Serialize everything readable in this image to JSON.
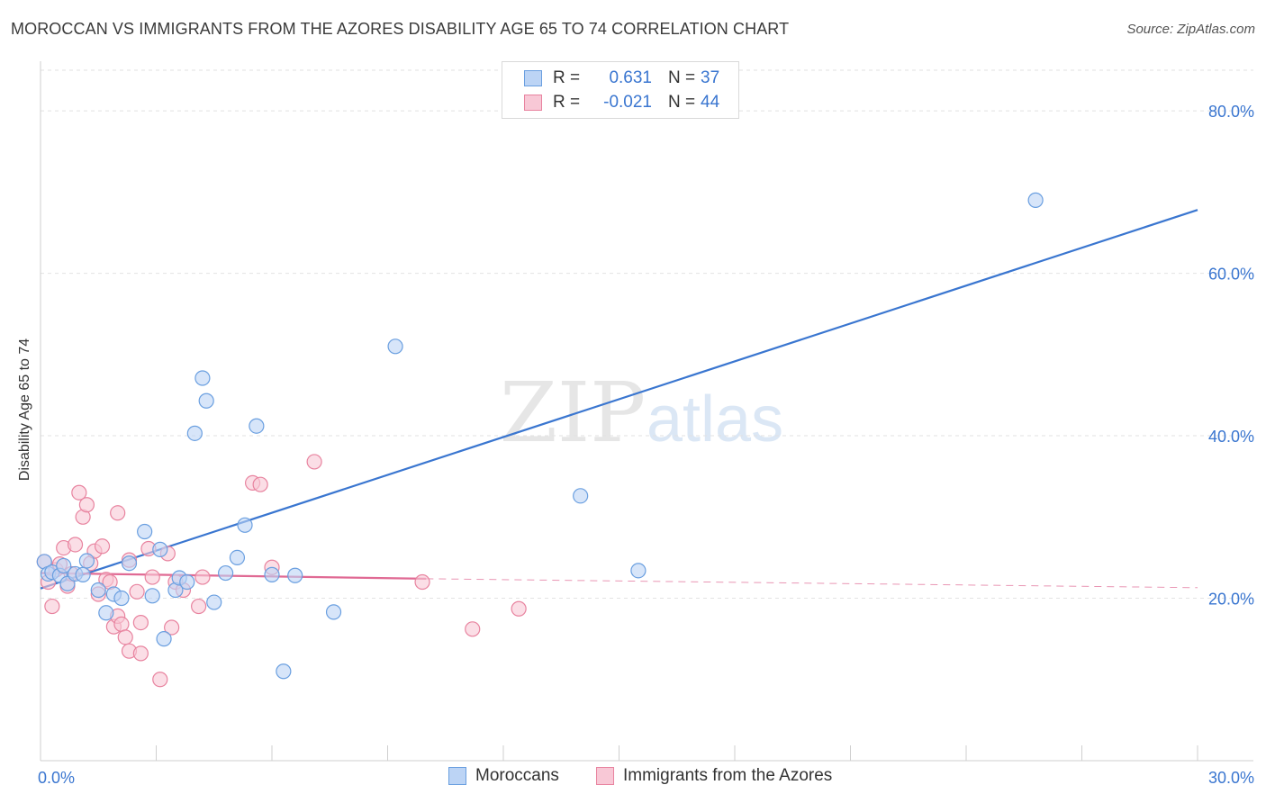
{
  "header": {
    "title": "MOROCCAN VS IMMIGRANTS FROM THE AZORES DISABILITY AGE 65 TO 74 CORRELATION CHART",
    "source": "Source: ZipAtlas.com"
  },
  "watermark": {
    "zip": "ZIP",
    "atlas": "atlas"
  },
  "legend_top": {
    "rows": [
      {
        "r_label": "R =",
        "r_value": "0.631",
        "n_label": "N =",
        "n_value": "37",
        "color": "#6a9fe0",
        "fill": "#bcd4f5"
      },
      {
        "r_label": "R =",
        "r_value": "-0.021",
        "n_label": "N =",
        "n_value": "44",
        "color": "#e8839f",
        "fill": "#f8c8d6"
      }
    ]
  },
  "legend_bottom": [
    {
      "label": "Moroccans",
      "color": "#6a9fe0",
      "fill": "#bcd4f5"
    },
    {
      "label": "Immigrants from the Azores",
      "color": "#e8839f",
      "fill": "#f8c8d6"
    }
  ],
  "chart_data": {
    "type": "scatter",
    "title": "MOROCCAN VS IMMIGRANTS FROM THE AZORES DISABILITY AGE 65 TO 74 CORRELATION CHART",
    "xlabel": "",
    "ylabel": "Disability Age 65 to 74",
    "xlim": [
      0,
      30
    ],
    "ylim": [
      0,
      85
    ],
    "x_tick_labels": [
      {
        "value": 0,
        "label": "0.0%"
      },
      {
        "value": 30,
        "label": "30.0%"
      }
    ],
    "y_tick_labels": [
      {
        "value": 20,
        "label": "20.0%"
      },
      {
        "value": 40,
        "label": "40.0%"
      },
      {
        "value": 60,
        "label": "60.0%"
      },
      {
        "value": 80,
        "label": "80.0%"
      }
    ],
    "grid": true,
    "series": [
      {
        "name": "Moroccans",
        "color": "#3a76d0",
        "point_stroke": "#6a9fe0",
        "point_fill": "#bcd4f5",
        "trend": {
          "x": [
            0,
            30
          ],
          "y": [
            21.2,
            67.8
          ],
          "dashed_after": null
        },
        "points": [
          {
            "x": 0.1,
            "y": 24.5
          },
          {
            "x": 0.2,
            "y": 23.0
          },
          {
            "x": 0.3,
            "y": 23.2
          },
          {
            "x": 0.5,
            "y": 22.8
          },
          {
            "x": 0.7,
            "y": 21.8
          },
          {
            "x": 0.9,
            "y": 23.0
          },
          {
            "x": 1.2,
            "y": 24.6
          },
          {
            "x": 1.1,
            "y": 22.9
          },
          {
            "x": 1.5,
            "y": 21.0
          },
          {
            "x": 1.7,
            "y": 18.2
          },
          {
            "x": 1.9,
            "y": 20.5
          },
          {
            "x": 2.1,
            "y": 20.0
          },
          {
            "x": 2.3,
            "y": 24.3
          },
          {
            "x": 2.7,
            "y": 28.2
          },
          {
            "x": 2.9,
            "y": 20.3
          },
          {
            "x": 3.1,
            "y": 26.0
          },
          {
            "x": 3.2,
            "y": 15.0
          },
          {
            "x": 3.5,
            "y": 21.0
          },
          {
            "x": 3.6,
            "y": 22.5
          },
          {
            "x": 3.8,
            "y": 22.0
          },
          {
            "x": 4.0,
            "y": 40.3
          },
          {
            "x": 4.2,
            "y": 47.1
          },
          {
            "x": 4.3,
            "y": 44.3
          },
          {
            "x": 4.5,
            "y": 19.5
          },
          {
            "x": 4.8,
            "y": 23.1
          },
          {
            "x": 5.1,
            "y": 25.0
          },
          {
            "x": 5.3,
            "y": 29.0
          },
          {
            "x": 5.6,
            "y": 41.2
          },
          {
            "x": 6.0,
            "y": 22.9
          },
          {
            "x": 6.3,
            "y": 11.0
          },
          {
            "x": 6.6,
            "y": 22.8
          },
          {
            "x": 7.6,
            "y": 18.3
          },
          {
            "x": 9.2,
            "y": 51.0
          },
          {
            "x": 14.0,
            "y": 32.6
          },
          {
            "x": 15.5,
            "y": 23.4
          },
          {
            "x": 25.8,
            "y": 69.0
          },
          {
            "x": 0.6,
            "y": 24.0
          }
        ]
      },
      {
        "name": "Immigrants from the Azores",
        "color": "#e06a94",
        "point_stroke": "#e8839f",
        "point_fill": "#f8c8d6",
        "trend": {
          "x": [
            0,
            10
          ],
          "y": [
            23.1,
            22.4
          ],
          "dashed_extension": {
            "x": [
              10,
              30
            ],
            "y": [
              22.4,
              21.3
            ]
          }
        },
        "points": [
          {
            "x": 0.1,
            "y": 24.5
          },
          {
            "x": 0.2,
            "y": 22.0
          },
          {
            "x": 0.3,
            "y": 19.0
          },
          {
            "x": 0.4,
            "y": 23.5
          },
          {
            "x": 0.5,
            "y": 24.2
          },
          {
            "x": 0.6,
            "y": 26.2
          },
          {
            "x": 0.7,
            "y": 21.5
          },
          {
            "x": 0.8,
            "y": 23.0
          },
          {
            "x": 0.9,
            "y": 26.6
          },
          {
            "x": 1.0,
            "y": 33.0
          },
          {
            "x": 1.1,
            "y": 30.0
          },
          {
            "x": 1.2,
            "y": 31.5
          },
          {
            "x": 1.3,
            "y": 24.3
          },
          {
            "x": 1.4,
            "y": 25.8
          },
          {
            "x": 1.5,
            "y": 20.5
          },
          {
            "x": 1.6,
            "y": 26.4
          },
          {
            "x": 1.7,
            "y": 22.3
          },
          {
            "x": 1.8,
            "y": 22.0
          },
          {
            "x": 1.9,
            "y": 16.5
          },
          {
            "x": 2.0,
            "y": 30.5
          },
          {
            "x": 2.0,
            "y": 17.8
          },
          {
            "x": 2.1,
            "y": 16.8
          },
          {
            "x": 2.2,
            "y": 15.2
          },
          {
            "x": 2.3,
            "y": 24.7
          },
          {
            "x": 2.3,
            "y": 13.5
          },
          {
            "x": 2.5,
            "y": 20.8
          },
          {
            "x": 2.6,
            "y": 17.0
          },
          {
            "x": 2.6,
            "y": 13.2
          },
          {
            "x": 2.8,
            "y": 26.1
          },
          {
            "x": 2.9,
            "y": 22.6
          },
          {
            "x": 3.1,
            "y": 10.0
          },
          {
            "x": 3.3,
            "y": 25.5
          },
          {
            "x": 3.4,
            "y": 16.4
          },
          {
            "x": 3.5,
            "y": 22.0
          },
          {
            "x": 3.7,
            "y": 21.0
          },
          {
            "x": 4.1,
            "y": 19.0
          },
          {
            "x": 4.2,
            "y": 22.6
          },
          {
            "x": 5.5,
            "y": 34.2
          },
          {
            "x": 5.7,
            "y": 34.0
          },
          {
            "x": 6.0,
            "y": 23.8
          },
          {
            "x": 7.1,
            "y": 36.8
          },
          {
            "x": 9.9,
            "y": 22.0
          },
          {
            "x": 11.2,
            "y": 16.2
          },
          {
            "x": 12.4,
            "y": 18.7
          }
        ]
      }
    ]
  }
}
